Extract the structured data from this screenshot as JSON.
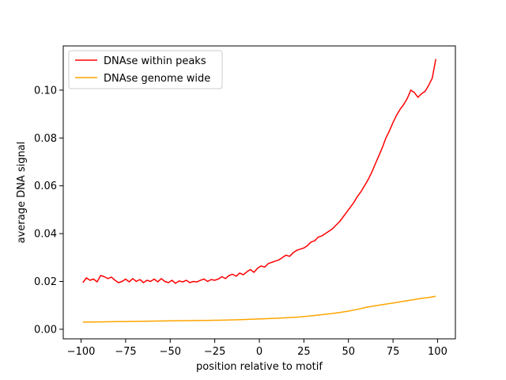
{
  "chart_data": {
    "type": "line",
    "title": "",
    "xlabel": "position relative to motif",
    "ylabel": "average DNA signal",
    "xlim": [
      -110,
      110
    ],
    "ylim": [
      -0.004,
      0.1185
    ],
    "xticks": [
      -100,
      -75,
      -50,
      -25,
      0,
      25,
      50,
      75,
      100
    ],
    "xtick_labels": [
      "−100",
      "−75",
      "−50",
      "−25",
      "0",
      "25",
      "50",
      "75",
      "100"
    ],
    "yticks": [
      0.0,
      0.02,
      0.04,
      0.06,
      0.08,
      0.1
    ],
    "ytick_labels": [
      "0.00",
      "0.02",
      "0.04",
      "0.06",
      "0.08",
      "0.10"
    ],
    "grid": false,
    "legend": "top-left",
    "series": [
      {
        "name": "DNAse within peaks",
        "color": "#ff0000",
        "points": [
          [
            -99,
            0.0195
          ],
          [
            -97,
            0.0215
          ],
          [
            -95,
            0.0205
          ],
          [
            -93,
            0.021
          ],
          [
            -91,
            0.0198
          ],
          [
            -89,
            0.0225
          ],
          [
            -87,
            0.022
          ],
          [
            -85,
            0.0212
          ],
          [
            -83,
            0.0218
          ],
          [
            -81,
            0.0205
          ],
          [
            -79,
            0.0195
          ],
          [
            -77,
            0.02
          ],
          [
            -75,
            0.021
          ],
          [
            -73,
            0.0198
          ],
          [
            -71,
            0.0212
          ],
          [
            -69,
            0.02
          ],
          [
            -67,
            0.0208
          ],
          [
            -65,
            0.0195
          ],
          [
            -63,
            0.0205
          ],
          [
            -61,
            0.02
          ],
          [
            -59,
            0.021
          ],
          [
            -57,
            0.0198
          ],
          [
            -55,
            0.0212
          ],
          [
            -53,
            0.02
          ],
          [
            -51,
            0.0195
          ],
          [
            -49,
            0.0205
          ],
          [
            -47,
            0.0192
          ],
          [
            -45,
            0.0202
          ],
          [
            -43,
            0.0198
          ],
          [
            -41,
            0.0205
          ],
          [
            -39,
            0.0195
          ],
          [
            -37,
            0.02
          ],
          [
            -35,
            0.0198
          ],
          [
            -33,
            0.0205
          ],
          [
            -31,
            0.021
          ],
          [
            -29,
            0.02
          ],
          [
            -27,
            0.0208
          ],
          [
            -25,
            0.0205
          ],
          [
            -23,
            0.021
          ],
          [
            -21,
            0.022
          ],
          [
            -19,
            0.0212
          ],
          [
            -17,
            0.0225
          ],
          [
            -15,
            0.023
          ],
          [
            -13,
            0.0222
          ],
          [
            -11,
            0.0235
          ],
          [
            -9,
            0.0228
          ],
          [
            -7,
            0.024
          ],
          [
            -5,
            0.025
          ],
          [
            -3,
            0.0238
          ],
          [
            -1,
            0.0255
          ],
          [
            1,
            0.0265
          ],
          [
            3,
            0.026
          ],
          [
            5,
            0.0275
          ],
          [
            7,
            0.028
          ],
          [
            9,
            0.0285
          ],
          [
            11,
            0.029
          ],
          [
            13,
            0.03
          ],
          [
            15,
            0.031
          ],
          [
            17,
            0.0305
          ],
          [
            19,
            0.032
          ],
          [
            21,
            0.033
          ],
          [
            23,
            0.0335
          ],
          [
            25,
            0.034
          ],
          [
            27,
            0.035
          ],
          [
            29,
            0.0365
          ],
          [
            31,
            0.037
          ],
          [
            33,
            0.0385
          ],
          [
            35,
            0.039
          ],
          [
            37,
            0.04
          ],
          [
            39,
            0.041
          ],
          [
            41,
            0.042
          ],
          [
            43,
            0.0435
          ],
          [
            45,
            0.045
          ],
          [
            47,
            0.047
          ],
          [
            49,
            0.049
          ],
          [
            51,
            0.051
          ],
          [
            53,
            0.053
          ],
          [
            55,
            0.0555
          ],
          [
            57,
            0.0575
          ],
          [
            59,
            0.06
          ],
          [
            61,
            0.0625
          ],
          [
            63,
            0.0655
          ],
          [
            65,
            0.069
          ],
          [
            67,
            0.0725
          ],
          [
            69,
            0.076
          ],
          [
            71,
            0.08
          ],
          [
            73,
            0.083
          ],
          [
            75,
            0.0865
          ],
          [
            77,
            0.0895
          ],
          [
            79,
            0.092
          ],
          [
            81,
            0.094
          ],
          [
            83,
            0.0965
          ],
          [
            85,
            0.1
          ],
          [
            87,
            0.099
          ],
          [
            89,
            0.097
          ],
          [
            91,
            0.0985
          ],
          [
            93,
            0.0995
          ],
          [
            95,
            0.102
          ],
          [
            97,
            0.105
          ],
          [
            99,
            0.113
          ]
        ]
      },
      {
        "name": "DNAse genome wide",
        "color": "#ffa500",
        "points": [
          [
            -99,
            0.003
          ],
          [
            -90,
            0.0031
          ],
          [
            -80,
            0.0032
          ],
          [
            -70,
            0.0033
          ],
          [
            -60,
            0.0034
          ],
          [
            -50,
            0.0035
          ],
          [
            -40,
            0.0036
          ],
          [
            -30,
            0.0037
          ],
          [
            -20,
            0.0038
          ],
          [
            -10,
            0.004
          ],
          [
            0,
            0.0043
          ],
          [
            10,
            0.0046
          ],
          [
            20,
            0.005
          ],
          [
            25,
            0.0053
          ],
          [
            30,
            0.0057
          ],
          [
            35,
            0.0061
          ],
          [
            40,
            0.0065
          ],
          [
            45,
            0.007
          ],
          [
            50,
            0.0076
          ],
          [
            55,
            0.0083
          ],
          [
            60,
            0.0092
          ],
          [
            65,
            0.0098
          ],
          [
            70,
            0.0104
          ],
          [
            75,
            0.011
          ],
          [
            80,
            0.0116
          ],
          [
            85,
            0.0122
          ],
          [
            90,
            0.0128
          ],
          [
            95,
            0.0133
          ],
          [
            99,
            0.0138
          ]
        ]
      }
    ]
  }
}
